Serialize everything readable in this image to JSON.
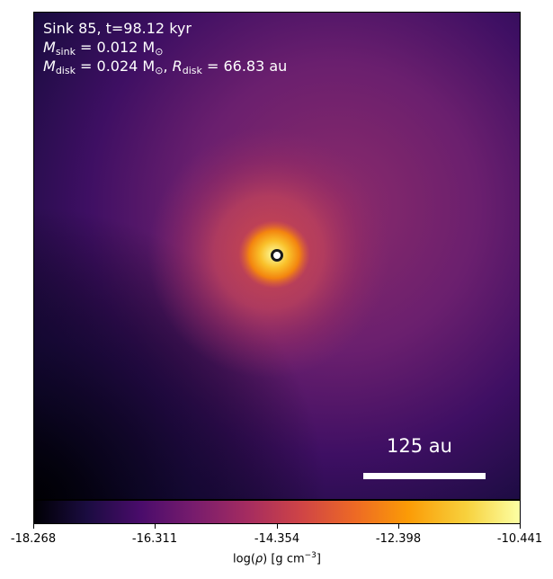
{
  "annotations": {
    "line1": "Sink 85, t=98.12 kyr",
    "sink_sym": "M",
    "sink_sub": "sink",
    "sink_value": " = 0.012 M",
    "sun_sym": "⊙",
    "disk_sym": "M",
    "disk_sub": "disk",
    "disk_value": " = 0.024 M",
    "disk_sep": ", ",
    "r_sym": "R",
    "r_sub": "disk",
    "r_value": " = 66.83 au"
  },
  "scale_bar": {
    "label": "125 au"
  },
  "colorbar": {
    "ticks": [
      "-18.268",
      "-16.311",
      "-14.354",
      "-12.398",
      "-10.441"
    ],
    "label_pre": "log(",
    "label_rho": "ρ",
    "label_post": ") [g cm",
    "label_exp": "−3",
    "label_close": "]",
    "colormap": "inferno"
  }
}
